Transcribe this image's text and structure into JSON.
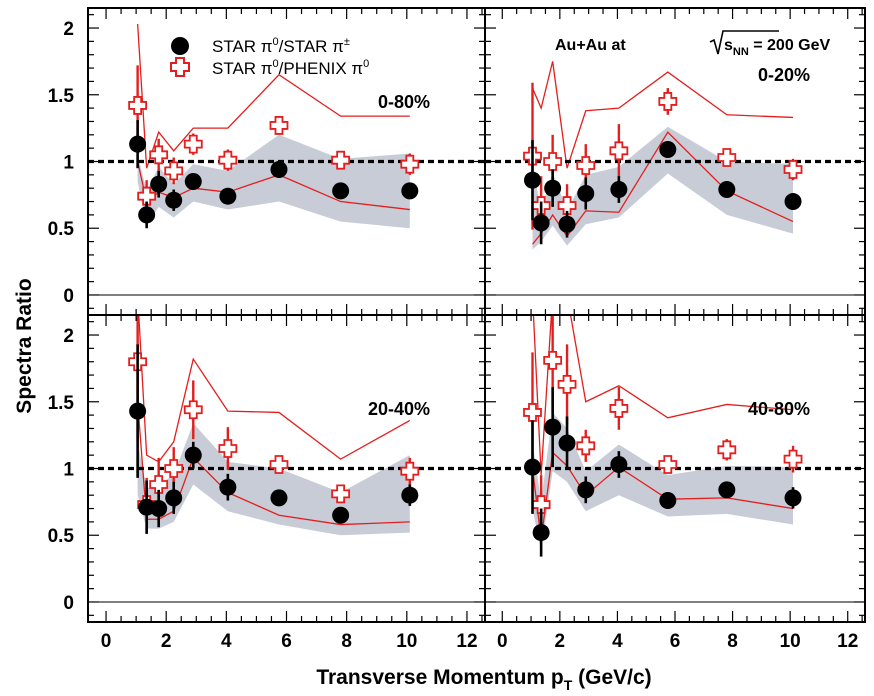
{
  "chart_data": {
    "type": "scatter",
    "xlabel": "Transverse Momentum p",
    "xlabel_sub": "T",
    "xlabel_unit": " (GeV/c)",
    "ylabel": "Spectra Ratio",
    "xlim": [
      -0.6,
      12.6
    ],
    "ylim": [
      -0.15,
      2.15
    ],
    "x_ticks": [
      "0",
      "2",
      "4",
      "6",
      "8",
      "10",
      "12"
    ],
    "y_ticks": [
      "0",
      "0.5",
      "1",
      "1.5",
      "2"
    ],
    "reference_line": 1,
    "legend": {
      "placement": "top-left of first panel",
      "entries": [
        {
          "marker": "filled-circle",
          "label_main": "STAR π",
          "label_sup": "0",
          "label_rest": "/STAR π",
          "label_sup2": "±"
        },
        {
          "marker": "open-cross",
          "label_main": "STAR π",
          "label_sup": "0",
          "label_rest": "/PHENIX π",
          "label_sup2": "0"
        }
      ]
    },
    "system_label": {
      "prefix": "Au+Au at ",
      "s": "s",
      "sub": "NN",
      "suffix": " = 200 GeV"
    },
    "panels": [
      {
        "centrality": "0-80%",
        "star_ratio": {
          "x": [
            1.05,
            1.35,
            1.75,
            2.25,
            2.9,
            4.05,
            5.75,
            7.8,
            10.1
          ],
          "y": [
            1.13,
            0.6,
            0.83,
            0.71,
            0.85,
            0.74,
            0.94,
            0.78,
            0.78
          ],
          "err": [
            0.18,
            0.1,
            0.1,
            0.08,
            0.06,
            0.06,
            0.04,
            0.04,
            0.06
          ]
        },
        "phenix_ratio": {
          "x": [
            1.05,
            1.35,
            1.75,
            2.25,
            2.9,
            4.05,
            5.75,
            7.8,
            10.1
          ],
          "y": [
            1.42,
            0.74,
            1.05,
            0.93,
            1.13,
            1.01,
            1.27,
            1.01,
            0.98
          ],
          "err": [
            0.3,
            0.12,
            0.12,
            0.1,
            0.08,
            0.08,
            0.05,
            0.05,
            0.08
          ]
        },
        "band_upper": {
          "x": [
            1.05,
            1.35,
            1.75,
            2.25,
            2.9,
            4.05,
            5.75,
            7.8,
            10.1
          ],
          "y": [
            1.05,
            0.78,
            0.96,
            0.83,
            0.98,
            0.93,
            1.2,
            1.02,
            1.06
          ]
        },
        "band_lower": {
          "x": [
            1.05,
            1.35,
            1.75,
            2.25,
            2.9,
            4.05,
            5.75,
            7.8,
            10.1
          ],
          "y": [
            0.85,
            0.52,
            0.66,
            0.58,
            0.7,
            0.64,
            0.7,
            0.55,
            0.5
          ]
        },
        "red_upper": {
          "x": [
            1.05,
            1.35,
            1.75,
            2.25,
            2.9,
            4.05,
            5.75,
            7.8,
            10.1
          ],
          "y": [
            2.03,
            0.95,
            1.22,
            1.08,
            1.25,
            1.25,
            1.65,
            1.34,
            1.34
          ]
        },
        "red_lower": {
          "x": [
            1.05,
            1.35,
            1.75,
            2.25,
            2.9,
            4.05,
            5.75,
            7.8,
            10.1
          ],
          "y": [
            1.0,
            0.7,
            0.77,
            0.73,
            0.8,
            0.77,
            0.9,
            0.7,
            0.64
          ]
        }
      },
      {
        "centrality": "0-20%",
        "star_ratio": {
          "x": [
            1.05,
            1.35,
            1.75,
            2.25,
            2.9,
            4.05,
            5.75,
            7.8,
            10.1
          ],
          "y": [
            0.86,
            0.54,
            0.8,
            0.53,
            0.76,
            0.79,
            1.09,
            0.79,
            0.7
          ],
          "err": [
            0.3,
            0.16,
            0.14,
            0.1,
            0.12,
            0.1,
            0.06,
            0.04,
            0.06
          ]
        },
        "phenix_ratio": {
          "x": [
            1.05,
            1.35,
            1.75,
            2.25,
            2.9,
            4.05,
            5.75,
            7.8,
            10.1
          ],
          "y": [
            1.04,
            0.67,
            1.0,
            0.67,
            0.97,
            1.08,
            1.45,
            1.03,
            0.94
          ],
          "err": [
            0.55,
            0.22,
            0.2,
            0.16,
            0.16,
            0.2,
            0.1,
            0.06,
            0.08
          ]
        },
        "band_upper": {
          "x": [
            1.05,
            1.35,
            1.75,
            2.25,
            2.9,
            4.05,
            5.75,
            7.8,
            10.1
          ],
          "y": [
            0.96,
            0.64,
            0.92,
            0.63,
            0.9,
            0.96,
            1.26,
            1.0,
            0.98
          ]
        },
        "band_lower": {
          "x": [
            1.05,
            1.35,
            1.75,
            2.25,
            2.9,
            4.05,
            5.75,
            7.8,
            10.1
          ],
          "y": [
            0.34,
            0.4,
            0.52,
            0.37,
            0.53,
            0.58,
            0.91,
            0.6,
            0.46
          ]
        },
        "red_upper": {
          "x": [
            1.05,
            1.35,
            1.75,
            2.25,
            2.9,
            4.05,
            5.75,
            7.8,
            10.1
          ],
          "y": [
            1.55,
            1.4,
            1.75,
            0.95,
            1.38,
            1.4,
            1.67,
            1.35,
            1.33
          ]
        },
        "red_lower": {
          "x": [
            1.05,
            1.35,
            1.75,
            2.25,
            2.9,
            4.05,
            5.75,
            7.8,
            10.1
          ],
          "y": [
            0.38,
            0.46,
            0.6,
            0.44,
            0.63,
            0.62,
            1.22,
            0.78,
            0.55
          ]
        }
      },
      {
        "centrality": "20-40%",
        "star_ratio": {
          "x": [
            1.05,
            1.35,
            1.75,
            2.25,
            2.9,
            4.05,
            5.75,
            7.8,
            10.1
          ],
          "y": [
            1.43,
            0.71,
            0.7,
            0.78,
            1.1,
            0.86,
            0.78,
            0.65,
            0.8
          ],
          "err": [
            0.5,
            0.2,
            0.14,
            0.12,
            0.1,
            0.1,
            0.04,
            0.04,
            0.08
          ]
        },
        "phenix_ratio": {
          "x": [
            1.05,
            1.35,
            1.75,
            2.25,
            2.9,
            4.05,
            5.75,
            7.8,
            10.1
          ],
          "y": [
            1.8,
            0.73,
            0.88,
            1.0,
            1.44,
            1.15,
            1.03,
            0.81,
            0.98
          ],
          "err": [
            0.6,
            0.2,
            0.2,
            0.16,
            0.22,
            0.16,
            0.06,
            0.06,
            0.1
          ]
        },
        "band_upper": {
          "x": [
            1.05,
            1.35,
            1.75,
            2.25,
            2.9,
            4.05,
            5.75,
            7.8,
            10.1
          ],
          "y": [
            1.2,
            0.85,
            0.88,
            0.95,
            1.34,
            1.05,
            1.0,
            0.82,
            1.1
          ]
        },
        "band_lower": {
          "x": [
            1.05,
            1.35,
            1.75,
            2.25,
            2.9,
            4.05,
            5.75,
            7.8,
            10.1
          ],
          "y": [
            0.8,
            0.55,
            0.55,
            0.6,
            0.88,
            0.68,
            0.58,
            0.5,
            0.52
          ]
        },
        "red_upper": {
          "x": [
            1.05,
            1.35,
            1.75,
            2.25,
            2.9,
            4.05,
            5.75,
            7.8,
            10.1
          ],
          "y": [
            2.3,
            1.1,
            1.05,
            1.2,
            1.82,
            1.43,
            1.42,
            1.07,
            1.36
          ]
        },
        "red_lower": {
          "x": [
            1.05,
            1.35,
            1.75,
            2.25,
            2.9,
            4.05,
            5.75,
            7.8,
            10.1
          ],
          "y": [
            1.5,
            0.62,
            0.62,
            0.68,
            1.08,
            0.82,
            0.65,
            0.58,
            0.6
          ]
        }
      },
      {
        "centrality": "40-80%",
        "star_ratio": {
          "x": [
            1.05,
            1.35,
            1.75,
            2.25,
            2.9,
            4.05,
            5.75,
            7.8,
            10.1
          ],
          "y": [
            1.01,
            0.52,
            1.31,
            1.19,
            0.84,
            1.03,
            0.76,
            0.84,
            0.78
          ],
          "err": [
            0.35,
            0.18,
            0.3,
            0.2,
            0.1,
            0.1,
            0.04,
            0.05,
            0.08
          ]
        },
        "phenix_ratio": {
          "x": [
            1.05,
            1.35,
            1.75,
            2.25,
            2.9,
            4.05,
            5.75,
            7.8,
            10.1
          ],
          "y": [
            1.42,
            0.73,
            1.81,
            1.63,
            1.17,
            1.45,
            1.03,
            1.14,
            1.07
          ],
          "err": [
            0.45,
            0.22,
            0.4,
            0.3,
            0.12,
            0.16,
            0.05,
            0.08,
            0.1
          ]
        },
        "band_upper": {
          "x": [
            1.05,
            1.35,
            1.75,
            2.25,
            2.9,
            4.05,
            5.75,
            7.8,
            10.1
          ],
          "y": [
            1.2,
            0.75,
            1.42,
            1.3,
            0.98,
            1.18,
            0.95,
            1.02,
            1.01
          ]
        },
        "band_lower": {
          "x": [
            1.05,
            1.35,
            1.75,
            2.25,
            2.9,
            4.05,
            5.75,
            7.8,
            10.1
          ],
          "y": [
            0.7,
            0.38,
            0.98,
            0.9,
            0.68,
            0.8,
            0.64,
            0.66,
            0.58
          ]
        },
        "red_upper": {
          "x": [
            1.05,
            1.35,
            1.75,
            2.25,
            2.9,
            4.05,
            5.75,
            7.8,
            10.1
          ],
          "y": [
            2.3,
            0.95,
            2.3,
            2.3,
            1.5,
            1.62,
            1.38,
            1.48,
            1.44
          ]
        },
        "red_lower": {
          "x": [
            1.05,
            1.35,
            1.75,
            2.25,
            2.9,
            4.05,
            5.75,
            7.8,
            10.1
          ],
          "y": [
            1.0,
            0.47,
            1.12,
            1.02,
            0.8,
            1.01,
            0.77,
            0.78,
            0.7
          ]
        }
      }
    ]
  },
  "colors": {
    "star_marker": "#000000",
    "phenix_marker": "#e41e1e",
    "red_curve": "#e41e1e",
    "band_fill": "#c8ccd6",
    "reference_line": "#000000"
  }
}
